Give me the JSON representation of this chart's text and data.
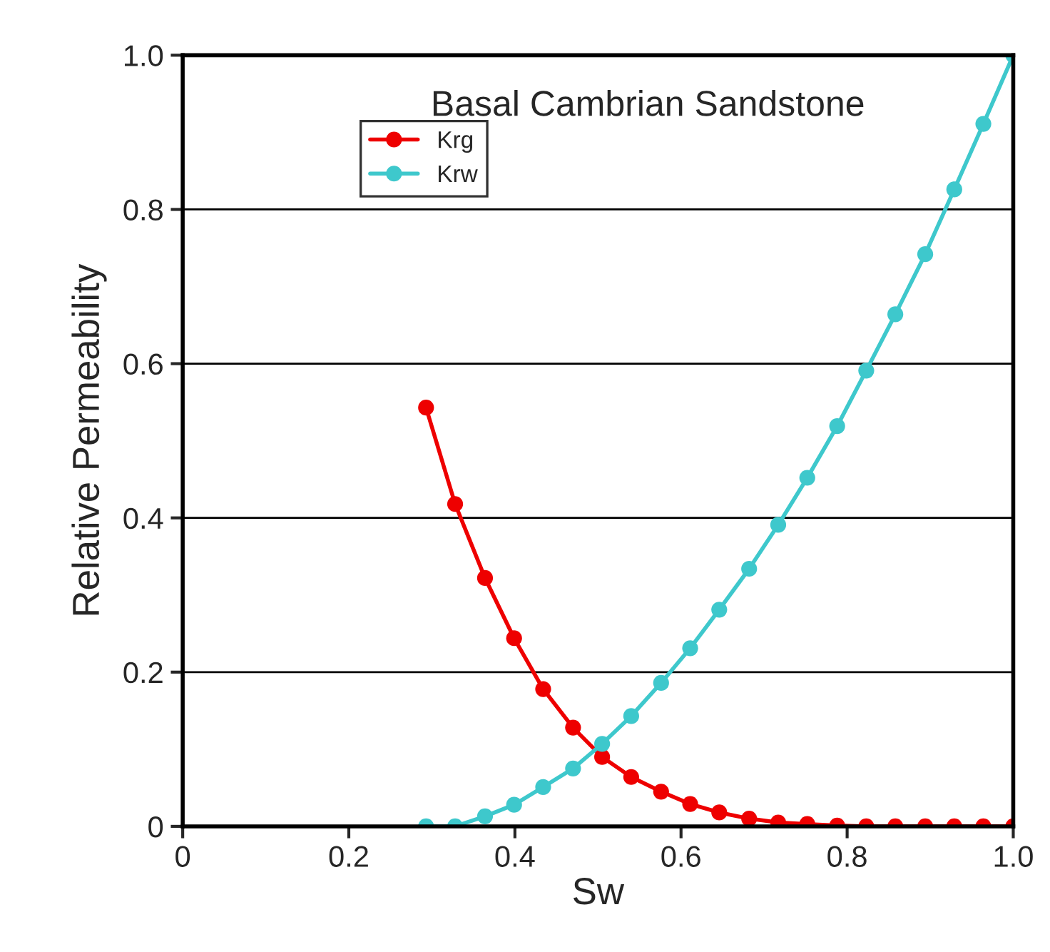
{
  "chart_data": {
    "type": "line",
    "title": "Basal Cambrian Sandstone",
    "xlabel": "Sw",
    "ylabel": "Relative Permeability",
    "x": [
      0.293,
      0.328,
      0.364,
      0.399,
      0.434,
      0.47,
      0.505,
      0.54,
      0.576,
      0.611,
      0.646,
      0.682,
      0.717,
      0.752,
      0.788,
      0.823,
      0.858,
      0.894,
      0.929,
      0.964,
      1.0
    ],
    "series": [
      {
        "name": "Krg",
        "color": "#ee0000",
        "values": [
          0.543,
          0.418,
          0.322,
          0.244,
          0.178,
          0.128,
          0.09,
          0.064,
          0.045,
          0.029,
          0.018,
          0.01,
          0.005,
          0.003,
          0.001,
          0,
          0,
          0,
          0,
          0,
          0
        ]
      },
      {
        "name": "Krw",
        "color": "#3ec8cc",
        "values": [
          0,
          0,
          0.013,
          0.028,
          0.051,
          0.075,
          0.107,
          0.143,
          0.186,
          0.231,
          0.281,
          0.334,
          0.391,
          0.452,
          0.519,
          0.591,
          0.664,
          0.742,
          0.826,
          0.911,
          1.0
        ]
      }
    ],
    "xlim": [
      0,
      1
    ],
    "ylim": [
      0,
      1
    ],
    "xticks": [
      0,
      0.2,
      0.4,
      0.6,
      0.8,
      {
        "value": 1,
        "label": "1.0"
      }
    ],
    "yticks": [
      0,
      0.2,
      0.4,
      0.6,
      0.8,
      {
        "value": 1,
        "label": "1.0"
      }
    ],
    "grid": "y",
    "legend": "top left",
    "marker": "circle",
    "line_style": "solid"
  }
}
